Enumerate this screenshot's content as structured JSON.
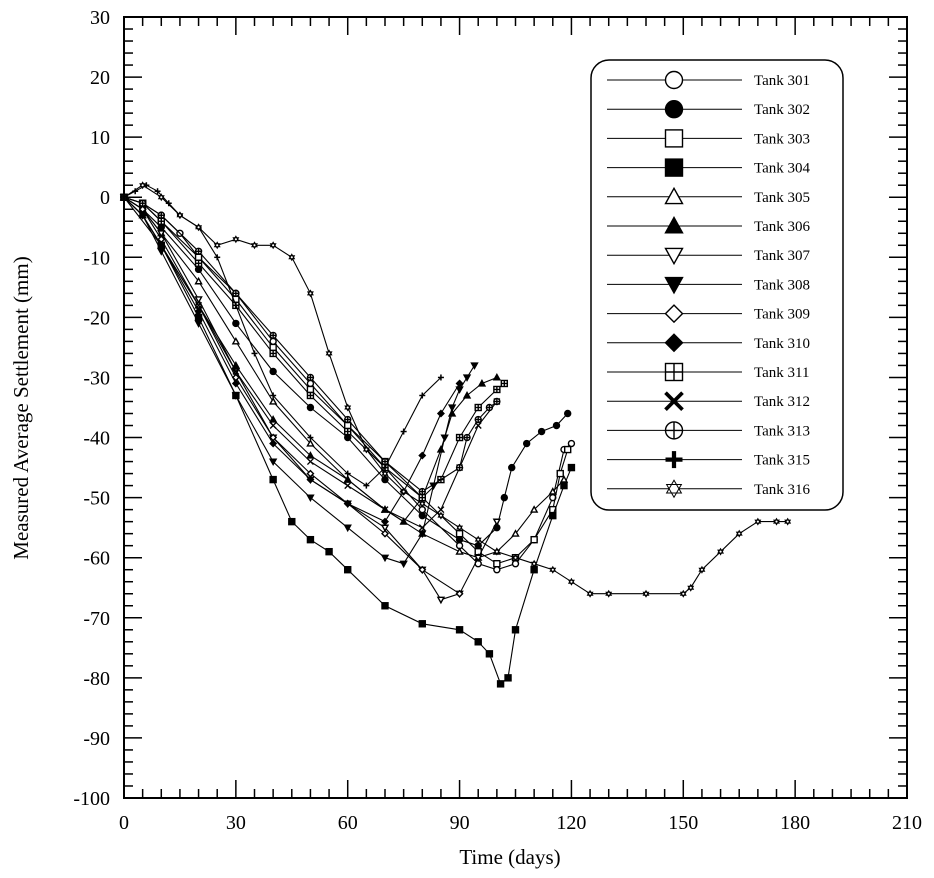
{
  "chart_data": {
    "type": "line",
    "title": "",
    "xlabel": "Time (days)",
    "ylabel": "Measured Average Settlement (mm)",
    "xlim": [
      0,
      210
    ],
    "ylim": [
      -100,
      30
    ],
    "x_ticks": [
      0,
      30,
      60,
      90,
      120,
      150,
      180,
      210
    ],
    "y_ticks": [
      30,
      20,
      10,
      0,
      -10,
      -20,
      -30,
      -40,
      -50,
      -60,
      -70,
      -80,
      -90,
      -100
    ],
    "grid": false,
    "legend_position": "top-right",
    "series": [
      {
        "name": "Tank 301",
        "marker": "circle-open",
        "x": [
          0,
          5,
          10,
          15,
          20,
          30,
          40,
          50,
          60,
          70,
          80,
          90,
          95,
          100,
          105,
          110,
          115,
          118,
          120
        ],
        "y": [
          0,
          -1,
          -3,
          -6,
          -10,
          -16,
          -24,
          -31,
          -38,
          -45,
          -52,
          -58,
          -61,
          -62,
          -61,
          -57,
          -50,
          -42,
          -41
        ]
      },
      {
        "name": "Tank 302",
        "marker": "circle-filled",
        "x": [
          0,
          5,
          10,
          20,
          30,
          40,
          50,
          60,
          70,
          80,
          90,
          95,
          100,
          102,
          104,
          108,
          112,
          116,
          119
        ],
        "y": [
          0,
          -2,
          -5,
          -12,
          -21,
          -29,
          -35,
          -40,
          -47,
          -53,
          -57,
          -58,
          -55,
          -50,
          -45,
          -41,
          -39,
          -38,
          -36
        ]
      },
      {
        "name": "Tank 303",
        "marker": "square-open",
        "x": [
          0,
          5,
          10,
          20,
          30,
          40,
          50,
          60,
          70,
          80,
          90,
          95,
          100,
          105,
          110,
          115,
          117,
          119
        ],
        "y": [
          0,
          -1,
          -4,
          -10,
          -17,
          -25,
          -32,
          -38,
          -44,
          -50,
          -56,
          -59,
          -61,
          -60,
          -57,
          -52,
          -46,
          -42
        ]
      },
      {
        "name": "Tank 304",
        "marker": "square-filled",
        "x": [
          0,
          10,
          20,
          30,
          40,
          45,
          50,
          55,
          60,
          70,
          80,
          90,
          95,
          98,
          101,
          103,
          105,
          110,
          115,
          118,
          120
        ],
        "y": [
          0,
          -8,
          -20,
          -33,
          -47,
          -54,
          -57,
          -59,
          -62,
          -68,
          -71,
          -72,
          -74,
          -76,
          -81,
          -80,
          -72,
          -62,
          -53,
          -48,
          -45
        ]
      },
      {
        "name": "Tank 305",
        "marker": "triangle-up-open",
        "x": [
          0,
          5,
          10,
          20,
          30,
          40,
          50,
          60,
          70,
          80,
          90,
          95,
          100,
          105,
          110,
          115,
          118
        ],
        "y": [
          0,
          -2,
          -6,
          -14,
          -24,
          -34,
          -41,
          -47,
          -52,
          -56,
          -59,
          -60,
          -59,
          -56,
          -52,
          -49,
          -47
        ]
      },
      {
        "name": "Tank 306",
        "marker": "triangle-up-filled",
        "x": [
          0,
          5,
          10,
          20,
          30,
          40,
          50,
          60,
          70,
          75,
          80,
          85,
          88,
          92,
          96,
          100
        ],
        "y": [
          0,
          -3,
          -8,
          -18,
          -28,
          -37,
          -43,
          -47,
          -52,
          -54,
          -50,
          -42,
          -36,
          -33,
          -31,
          -30
        ]
      },
      {
        "name": "Tank 307",
        "marker": "triangle-down-open",
        "x": [
          0,
          5,
          10,
          20,
          30,
          40,
          50,
          60,
          70,
          80,
          85,
          90,
          95,
          100
        ],
        "y": [
          0,
          -2,
          -6,
          -17,
          -29,
          -40,
          -47,
          -51,
          -55,
          -62,
          -67,
          -66,
          -60,
          -54
        ]
      },
      {
        "name": "Tank 308",
        "marker": "triangle-down-filled",
        "x": [
          0,
          5,
          10,
          20,
          30,
          40,
          50,
          60,
          70,
          75,
          80,
          83,
          86,
          88,
          90,
          92,
          94
        ],
        "y": [
          0,
          -3,
          -9,
          -21,
          -33,
          -44,
          -50,
          -55,
          -60,
          -61,
          -56,
          -48,
          -40,
          -35,
          -32,
          -30,
          -28
        ]
      },
      {
        "name": "Tank 309",
        "marker": "diamond-open",
        "x": [
          0,
          5,
          10,
          20,
          30,
          40,
          50,
          60,
          70,
          80,
          90
        ],
        "y": [
          0,
          -2,
          -7,
          -18,
          -30,
          -40,
          -46,
          -51,
          -56,
          -62,
          -66
        ]
      },
      {
        "name": "Tank 310",
        "marker": "diamond-filled",
        "x": [
          0,
          5,
          10,
          20,
          30,
          40,
          50,
          60,
          70,
          75,
          80,
          85,
          90
        ],
        "y": [
          0,
          -3,
          -8,
          -19,
          -31,
          -41,
          -47,
          -51,
          -54,
          -49,
          -43,
          -36,
          -31
        ]
      },
      {
        "name": "Tank 311",
        "marker": "square-plus",
        "x": [
          0,
          5,
          10,
          20,
          30,
          40,
          50,
          60,
          70,
          80,
          85,
          90,
          95,
          100,
          102
        ],
        "y": [
          0,
          -1,
          -4,
          -11,
          -18,
          -26,
          -33,
          -39,
          -45,
          -50,
          -47,
          -40,
          -35,
          -32,
          -31
        ]
      },
      {
        "name": "Tank 312",
        "marker": "x-cross",
        "x": [
          0,
          5,
          10,
          20,
          30,
          40,
          50,
          60,
          70,
          80,
          85,
          90,
          95,
          100
        ],
        "y": [
          0,
          -3,
          -8,
          -18,
          -29,
          -38,
          -44,
          -48,
          -52,
          -55,
          -52,
          -45,
          -38,
          -34
        ]
      },
      {
        "name": "Tank 313",
        "marker": "circle-plus",
        "x": [
          0,
          5,
          10,
          20,
          30,
          40,
          50,
          60,
          70,
          80,
          90,
          92,
          95,
          98,
          100
        ],
        "y": [
          0,
          -1,
          -3,
          -9,
          -16,
          -23,
          -30,
          -37,
          -44,
          -49,
          -45,
          -40,
          -37,
          -35,
          -34
        ]
      },
      {
        "name": "Tank 315",
        "marker": "plus-cross",
        "x": [
          0,
          3,
          6,
          9,
          12,
          15,
          20,
          25,
          30,
          35,
          40,
          50,
          60,
          65,
          70,
          75,
          80,
          85
        ],
        "y": [
          0,
          1,
          2,
          1,
          -1,
          -3,
          -5,
          -10,
          -18,
          -26,
          -33,
          -40,
          -46,
          -48,
          -45,
          -39,
          -33,
          -30
        ]
      },
      {
        "name": "Tank 316",
        "marker": "star-open",
        "x": [
          0,
          5,
          10,
          15,
          20,
          25,
          30,
          35,
          40,
          45,
          50,
          55,
          60,
          65,
          70,
          75,
          80,
          85,
          90,
          95,
          100,
          105,
          110,
          115,
          120,
          125,
          130,
          140,
          150,
          152,
          155,
          160,
          165,
          170,
          175,
          178
        ],
        "y": [
          0,
          2,
          0,
          -3,
          -5,
          -8,
          -7,
          -8,
          -8,
          -10,
          -16,
          -26,
          -35,
          -42,
          -46,
          -49,
          -51,
          -53,
          -55,
          -57,
          -59,
          -60,
          -61,
          -62,
          -64,
          -66,
          -66,
          -66,
          -66,
          -65,
          -62,
          -59,
          -56,
          -54,
          -54,
          -54
        ]
      }
    ]
  }
}
